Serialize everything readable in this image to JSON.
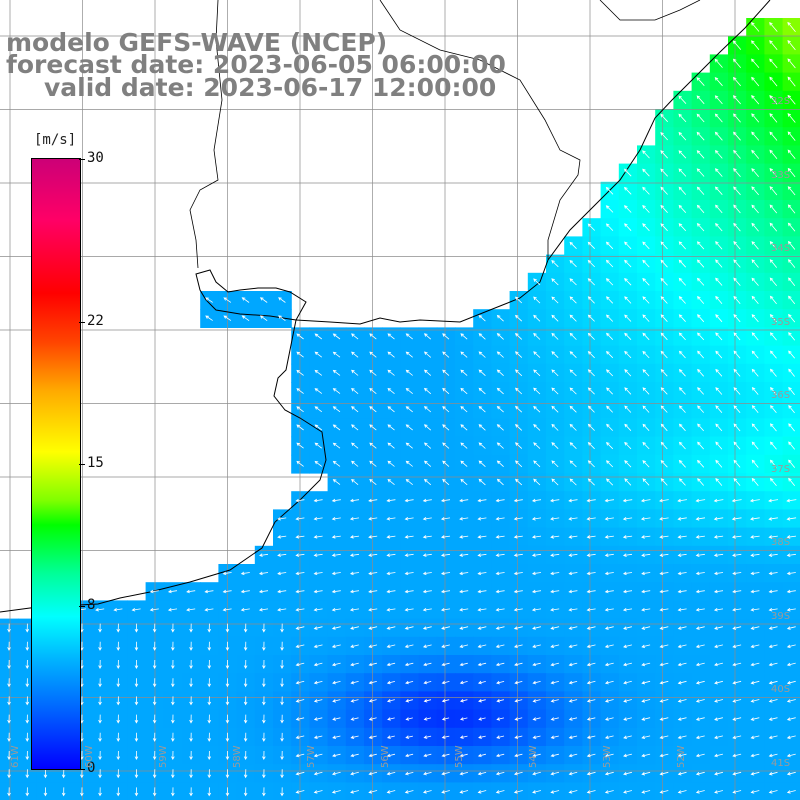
{
  "title": {
    "line1": "modelo GEFS-WAVE (NCEP)",
    "line2": "forecast date: 2023-06-05 06:00:00",
    "line3": "valid date: 2023-06-17 12:00:00"
  },
  "colorbar": {
    "unit": "[m/s]",
    "range": [
      0,
      30
    ],
    "ticks": [
      {
        "value": 30,
        "label": "30"
      },
      {
        "value": 22,
        "label": "22"
      },
      {
        "value": 15,
        "label": "15"
      },
      {
        "value": 8,
        "label": "8"
      },
      {
        "value": 0,
        "label": "0"
      }
    ]
  },
  "map": {
    "lon_range": [
      -62,
      -51.2
    ],
    "lat_range": [
      -41.5,
      -31.0
    ],
    "lat_labels": [
      "32S",
      "33S",
      "34S",
      "35S",
      "36S",
      "37S",
      "38S",
      "39S",
      "40S",
      "41S"
    ],
    "lon_labels": [
      "61W",
      "60W",
      "59W",
      "58W",
      "57W",
      "56W",
      "55W",
      "54W",
      "53W",
      "52W"
    ],
    "colors": {
      "land": "#ffffff",
      "grid": "#8c8c8c",
      "coast": "#000000",
      "arrow": "#ffffff"
    }
  }
}
